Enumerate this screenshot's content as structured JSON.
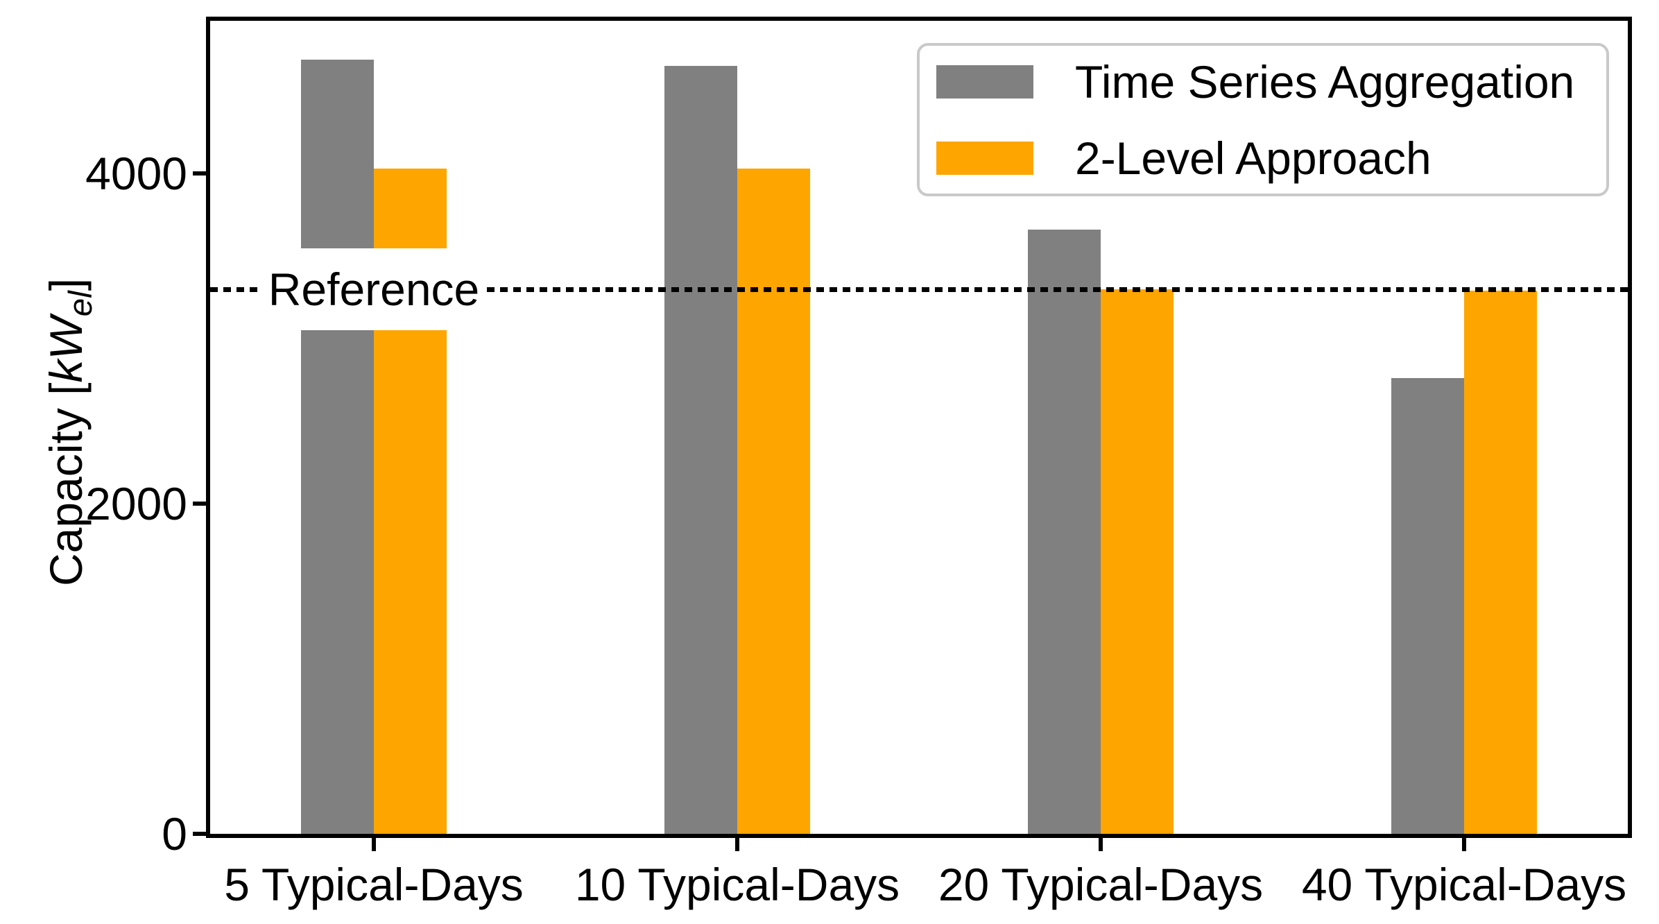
{
  "figure": {
    "background": "#ffffff",
    "text_color": "#000000"
  },
  "chart_data": {
    "type": "bar",
    "title": "",
    "xlabel": "",
    "categories": [
      "5 Typical-Days",
      "10 Typical-Days",
      "20 Typical-Days",
      "40 Typical-Days"
    ],
    "series": [
      {
        "name": "Time Series Aggregation",
        "color": "#808080",
        "values": [
          4690,
          4650,
          3660,
          2760
        ]
      },
      {
        "name": "2-Level Approach",
        "color": "#FFA500",
        "values": [
          4030,
          4030,
          3300,
          3290
        ]
      }
    ],
    "reference_line": {
      "label": "Reference",
      "value": 3300,
      "style": "dotted",
      "color": "#000000",
      "label_anchor_category_index": 0
    },
    "ylabel": {
      "prefix": "Capacity [",
      "unit_italic": "kW",
      "unit_subscript": "el",
      "suffix": "]"
    },
    "yticks": [
      0,
      2000,
      4000
    ],
    "ylim": [
      0,
      4925
    ],
    "grid": "off",
    "legend_position": "upper right"
  }
}
